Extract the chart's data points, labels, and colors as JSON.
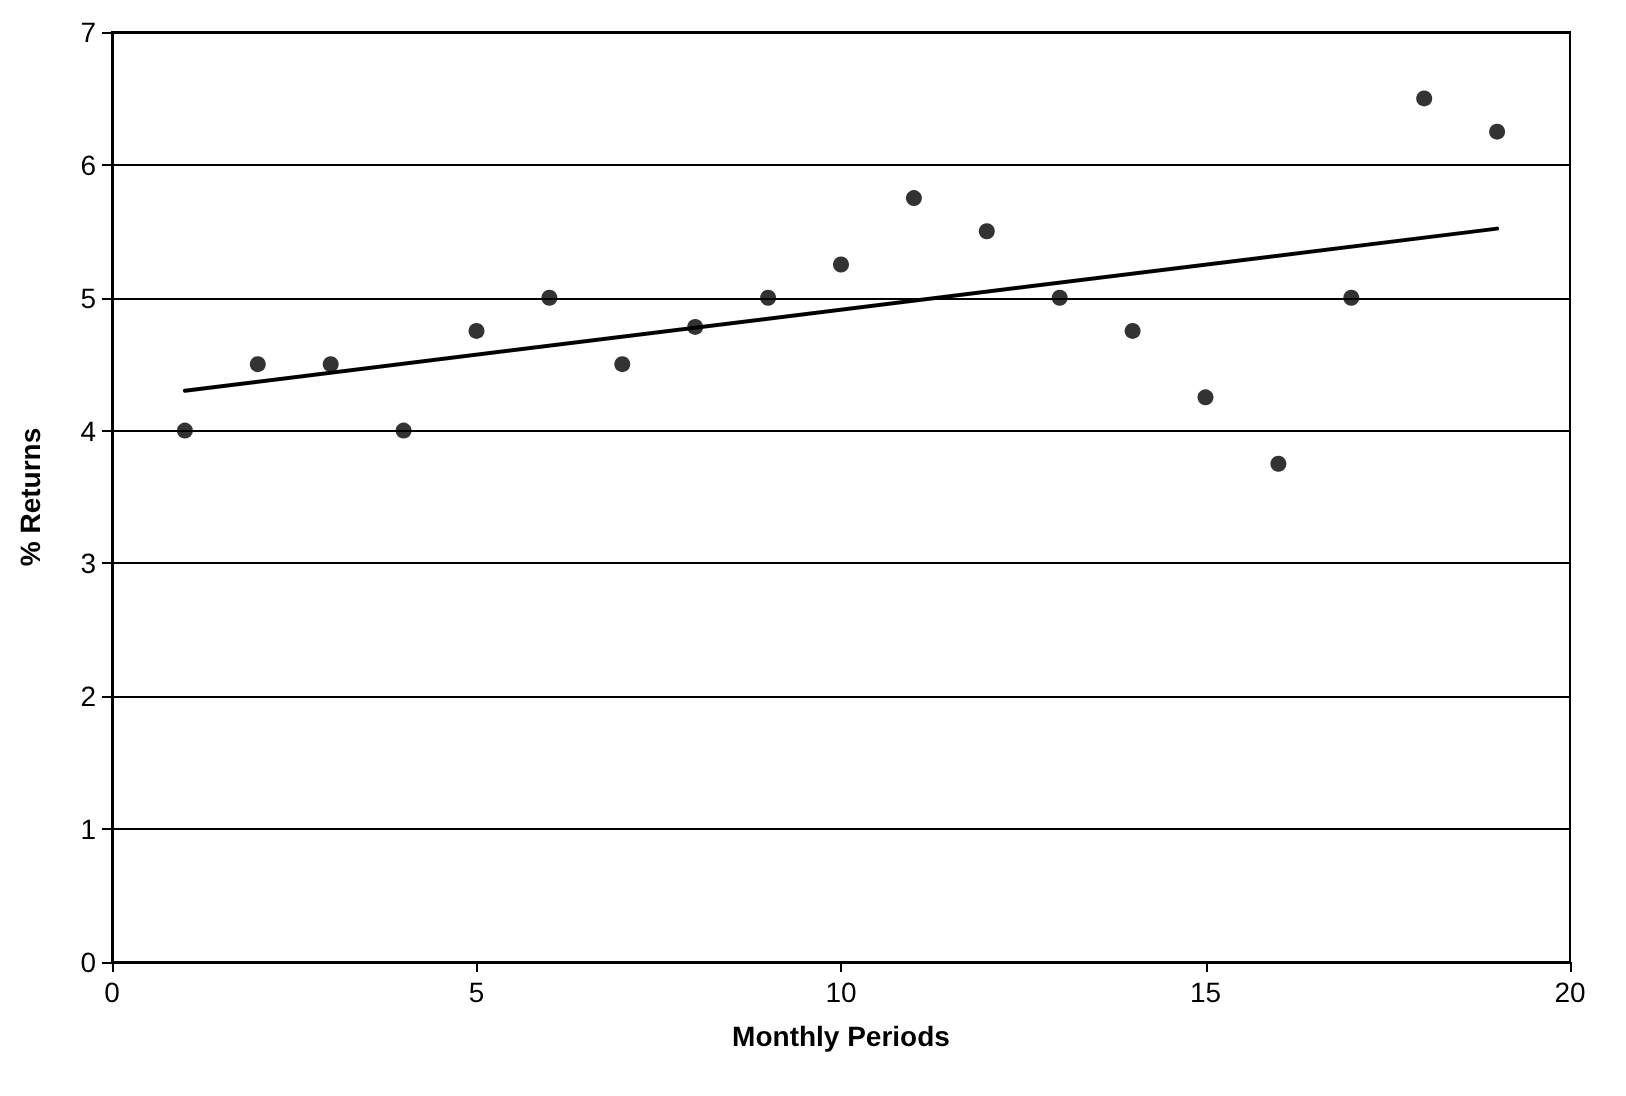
{
  "chart_data": {
    "type": "scatter",
    "xlabel": "Monthly Periods",
    "ylabel": "% Returns",
    "x": [
      1,
      2,
      3,
      4,
      5,
      6,
      7,
      8,
      9,
      10,
      11,
      12,
      13,
      14,
      15,
      16,
      17,
      18,
      19
    ],
    "xlim": [
      0,
      20
    ],
    "xticks": [
      0,
      5,
      10,
      15,
      20
    ],
    "ylim": [
      0,
      7
    ],
    "yticks": [
      0,
      1,
      2,
      3,
      4,
      5,
      6,
      7
    ],
    "grid": "y",
    "marker": "circle",
    "series": [
      {
        "color": "#000000",
        "values": [
          4,
          4.5,
          4.5,
          4,
          4.75,
          5,
          4.5,
          4.78,
          5,
          5.25,
          5.75,
          5.5,
          5,
          4.75,
          4.25,
          3.75,
          5,
          6.5,
          6.25
        ]
      },
      {
        "type": "line",
        "color": "#000000",
        "x": [
          1,
          19
        ],
        "values": [
          4.3,
          5.52
        ],
        "marker": "none",
        "line_style": "solid"
      }
    ]
  }
}
